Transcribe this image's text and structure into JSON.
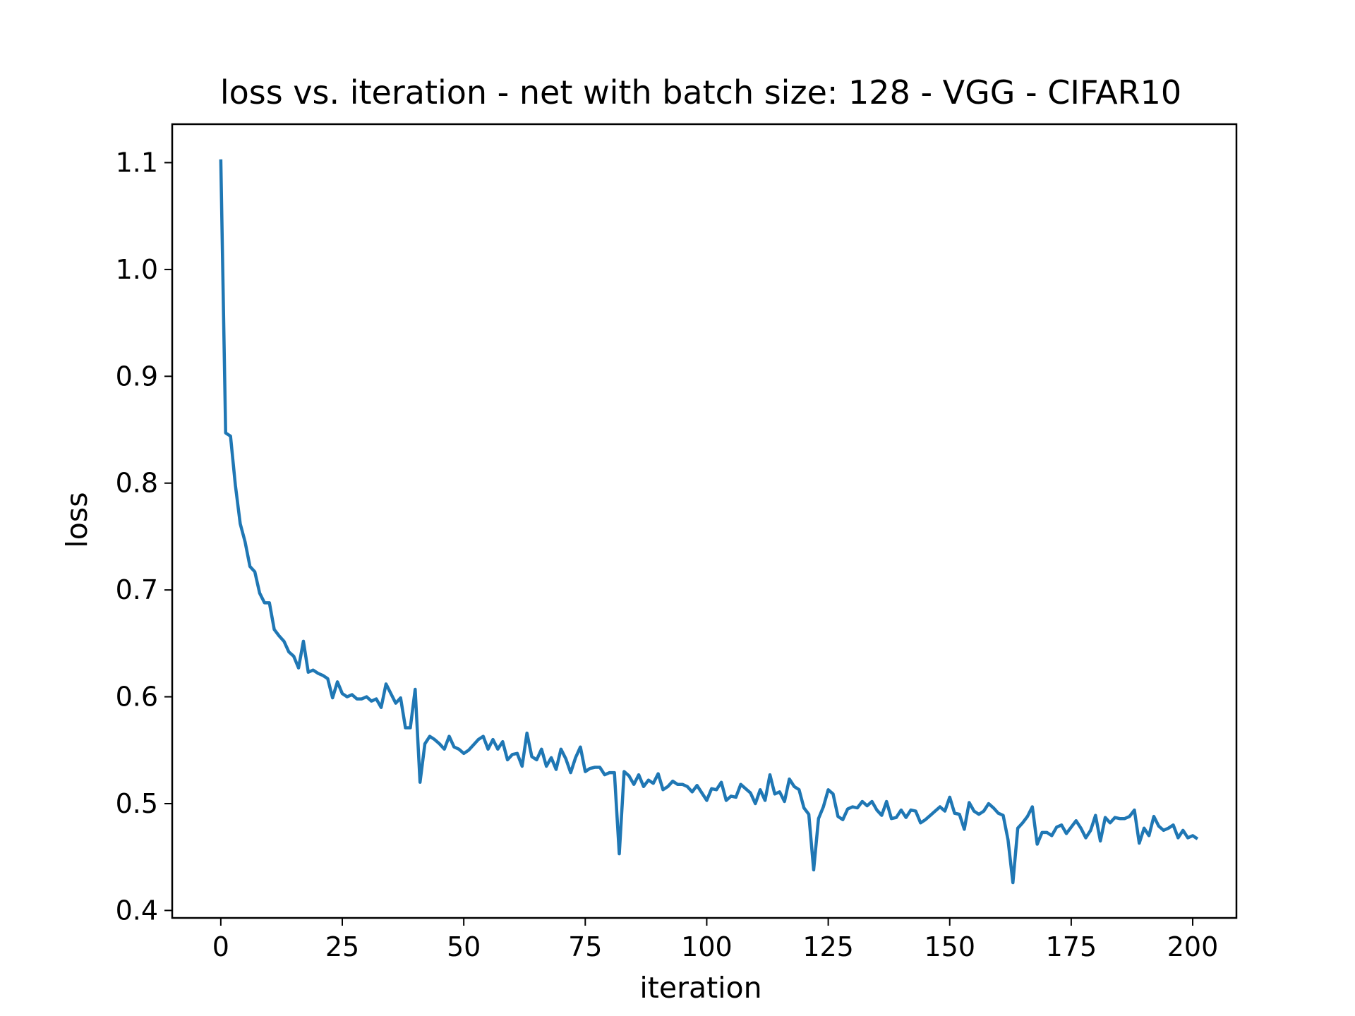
{
  "chart_data": {
    "type": "line",
    "title": "loss vs. iteration - net with batch size: 128 - VGG - CIFAR10",
    "xlabel": "iteration",
    "ylabel": "loss",
    "xlim": [
      -10,
      209
    ],
    "ylim": [
      0.393,
      1.136
    ],
    "xticks": [
      0,
      25,
      50,
      75,
      100,
      125,
      150,
      175,
      200
    ],
    "xtick_labels": [
      "0",
      "25",
      "50",
      "75",
      "100",
      "125",
      "150",
      "175",
      "200"
    ],
    "yticks": [
      0.4,
      0.5,
      0.6,
      0.7,
      0.8,
      0.9,
      1.0,
      1.1
    ],
    "ytick_labels": [
      "0.4",
      "0.5",
      "0.6",
      "0.7",
      "0.8",
      "0.9",
      "1.0",
      "1.1"
    ],
    "grid": false,
    "colors": {
      "line": "#1f77b4",
      "axes": "#000000",
      "background": "#ffffff"
    },
    "series": [
      {
        "values": [
          1.103,
          0.847,
          0.844,
          0.798,
          0.762,
          0.745,
          0.722,
          0.717,
          0.697,
          0.688,
          0.688,
          0.663,
          0.657,
          0.652,
          0.642,
          0.638,
          0.627,
          0.652,
          0.623,
          0.625,
          0.622,
          0.62,
          0.617,
          0.599,
          0.614,
          0.603,
          0.6,
          0.602,
          0.598,
          0.598,
          0.6,
          0.596,
          0.598,
          0.59,
          0.612,
          0.603,
          0.594,
          0.599,
          0.571,
          0.571,
          0.607,
          0.52,
          0.556,
          0.563,
          0.56,
          0.556,
          0.551,
          0.563,
          0.553,
          0.551,
          0.547,
          0.55,
          0.555,
          0.56,
          0.563,
          0.551,
          0.56,
          0.551,
          0.558,
          0.541,
          0.546,
          0.547,
          0.535,
          0.566,
          0.544,
          0.541,
          0.551,
          0.535,
          0.543,
          0.532,
          0.551,
          0.542,
          0.529,
          0.543,
          0.553,
          0.53,
          0.533,
          0.534,
          0.534,
          0.527,
          0.529,
          0.529,
          0.453,
          0.53,
          0.526,
          0.518,
          0.527,
          0.516,
          0.522,
          0.519,
          0.528,
          0.513,
          0.516,
          0.521,
          0.518,
          0.518,
          0.516,
          0.511,
          0.517,
          0.51,
          0.503,
          0.514,
          0.513,
          0.52,
          0.503,
          0.507,
          0.506,
          0.518,
          0.514,
          0.51,
          0.5,
          0.513,
          0.503,
          0.527,
          0.509,
          0.511,
          0.502,
          0.523,
          0.516,
          0.513,
          0.496,
          0.49,
          0.438,
          0.486,
          0.497,
          0.513,
          0.509,
          0.488,
          0.485,
          0.495,
          0.497,
          0.496,
          0.502,
          0.498,
          0.502,
          0.494,
          0.489,
          0.502,
          0.486,
          0.487,
          0.494,
          0.487,
          0.494,
          0.493,
          0.482,
          0.485,
          0.489,
          0.493,
          0.497,
          0.493,
          0.506,
          0.491,
          0.49,
          0.476,
          0.501,
          0.493,
          0.49,
          0.493,
          0.5,
          0.496,
          0.491,
          0.489,
          0.466,
          0.426,
          0.477,
          0.482,
          0.488,
          0.497,
          0.462,
          0.473,
          0.473,
          0.47,
          0.478,
          0.48,
          0.472,
          0.478,
          0.484,
          0.477,
          0.468,
          0.475,
          0.489,
          0.465,
          0.487,
          0.482,
          0.487,
          0.486,
          0.486,
          0.488,
          0.494,
          0.463,
          0.477,
          0.47,
          0.488,
          0.479,
          0.475,
          0.477,
          0.48,
          0.468,
          0.475,
          0.468,
          0.47,
          0.467
        ]
      }
    ]
  }
}
